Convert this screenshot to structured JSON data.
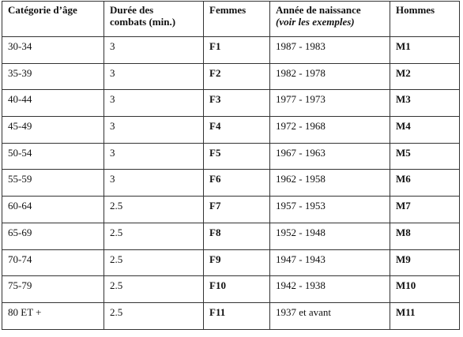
{
  "headers": {
    "age": "Catégorie d’âge",
    "duration_line1": "Durée des",
    "duration_line2": "combats (min.)",
    "women": "Femmes",
    "birth_line1": "Année de naissance",
    "birth_line2": "(voir les exemples)",
    "men": "Hommes"
  },
  "rows": [
    {
      "age": "30-34",
      "duration": "3",
      "women": "F1",
      "birth": "1987 - 1983",
      "men": "M1"
    },
    {
      "age": "35-39",
      "duration": "3",
      "women": "F2",
      "birth": "1982 - 1978",
      "men": "M2"
    },
    {
      "age": "40-44",
      "duration": "3",
      "women": "F3",
      "birth": "1977 - 1973",
      "men": "M3"
    },
    {
      "age": "45-49",
      "duration": "3",
      "women": "F4",
      "birth": "1972 - 1968",
      "men": "M4"
    },
    {
      "age": "50-54",
      "duration": "3",
      "women": "F5",
      "birth": "1967 - 1963",
      "men": "M5"
    },
    {
      "age": "55-59",
      "duration": "3",
      "women": "F6",
      "birth": "1962 - 1958",
      "men": "M6"
    },
    {
      "age": "60-64",
      "duration": "2.5",
      "women": "F7",
      "birth": "1957 - 1953",
      "men": "M7"
    },
    {
      "age": "65-69",
      "duration": "2.5",
      "women": "F8",
      "birth": "1952 - 1948",
      "men": "M8"
    },
    {
      "age": "70-74",
      "duration": "2.5",
      "women": "F9",
      "birth": "1947 - 1943",
      "men": "M9"
    },
    {
      "age": "75-79",
      "duration": "2.5",
      "women": "F10",
      "birth": "1942 - 1938",
      "men": "M10"
    },
    {
      "age": "80 ET +",
      "duration": "2.5",
      "women": "F11",
      "birth": "1937 et avant",
      "men": "M11"
    }
  ]
}
